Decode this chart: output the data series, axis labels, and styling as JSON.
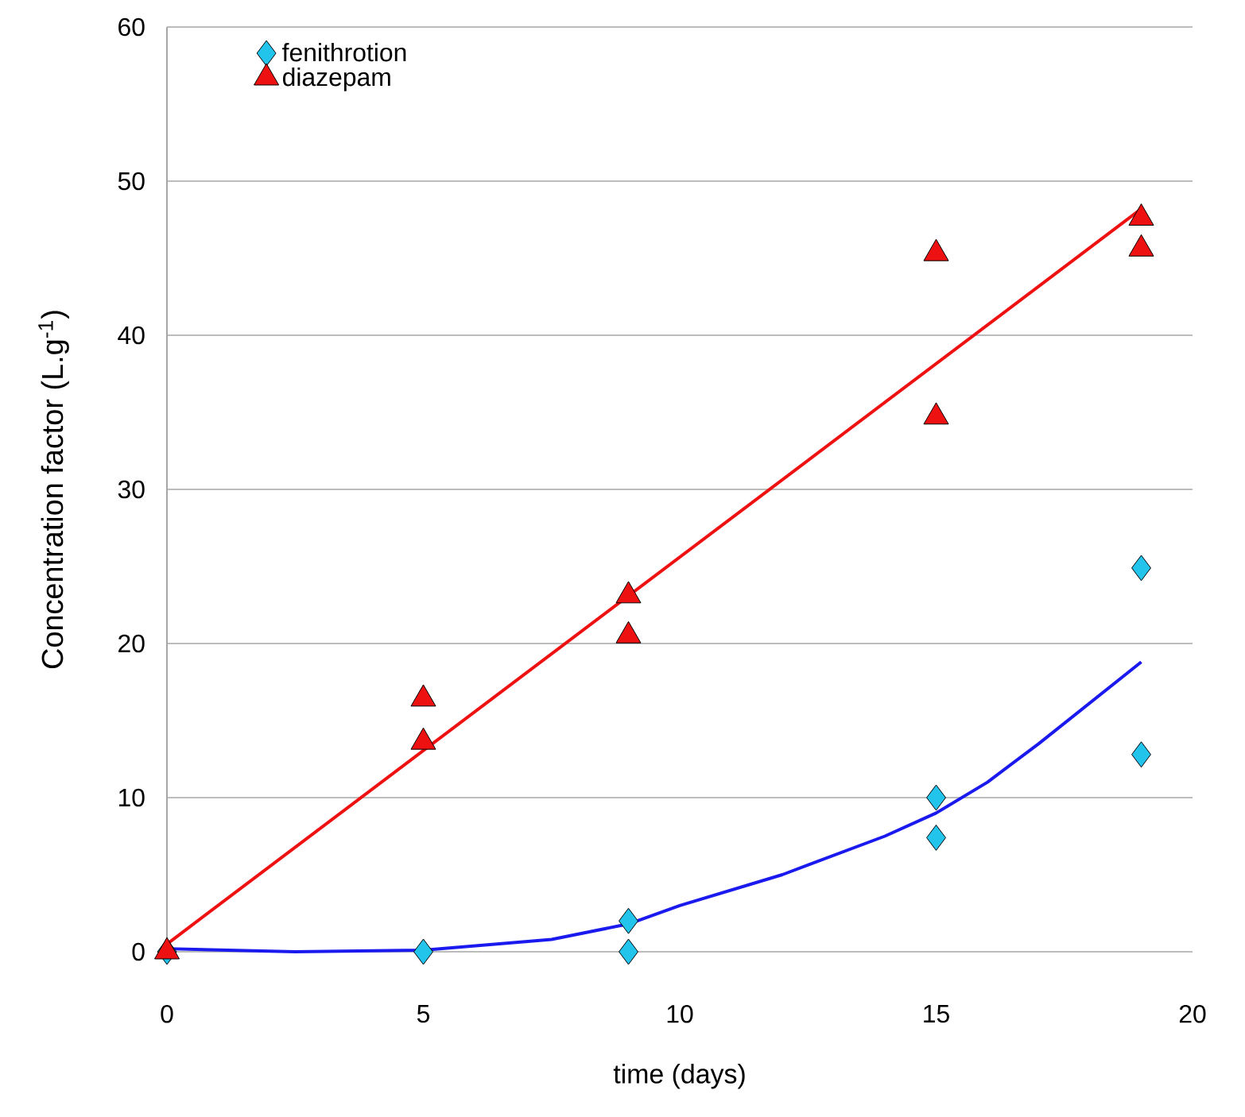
{
  "chart_data": {
    "type": "scatter",
    "xlabel": "time (days)",
    "ylabel": "Concentration factor (L.g$^{-1}$)",
    "xlim": [
      0,
      20
    ],
    "xticks": [
      0,
      5,
      10,
      15,
      20
    ],
    "ylim": [
      0,
      60
    ],
    "yticks": [
      0,
      10,
      20,
      30,
      40,
      50,
      60
    ],
    "grid": "y",
    "legend": "top left",
    "series": [
      {
        "name": "fenithrotion",
        "marker": "diamond",
        "color": "#22c4ec",
        "x": [
          0,
          5,
          9,
          9,
          15,
          15,
          19,
          19
        ],
        "values": [
          0,
          0,
          2,
          0,
          10,
          7.4,
          24.9,
          12.8
        ]
      },
      {
        "name": "diazepam",
        "marker": "triangle",
        "color": "#ee1111",
        "x": [
          0,
          5,
          5,
          9,
          9,
          15,
          15,
          19,
          19
        ],
        "values": [
          0,
          16.4,
          13.6,
          23.1,
          20.5,
          45.3,
          34.7,
          47.6,
          45.6
        ]
      },
      {
        "type": "line",
        "marker": "none",
        "color": "#1a1aee",
        "x": [
          0,
          2.5,
          5,
          7.5,
          9,
          10,
          12,
          14,
          15,
          16,
          17,
          19
        ],
        "values": [
          0.2,
          0,
          0.1,
          0.8,
          1.8,
          3,
          5,
          7.5,
          9,
          11,
          13.5,
          18.8
        ]
      },
      {
        "type": "line",
        "marker": "none",
        "color": "#ee1111",
        "x": [
          0,
          19
        ],
        "values": [
          0.5,
          48.2
        ]
      }
    ]
  }
}
